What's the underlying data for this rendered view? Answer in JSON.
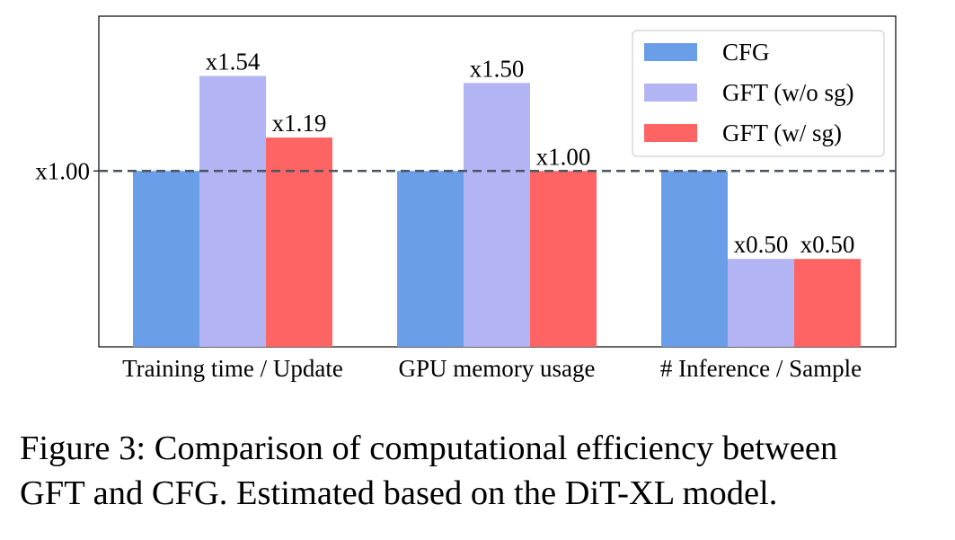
{
  "chart_data": {
    "type": "bar",
    "categories": [
      "Training time / Update",
      "GPU memory usage",
      "# Inference / Sample"
    ],
    "series": [
      {
        "name": "CFG",
        "color": "#6b9ee8",
        "values": [
          1.0,
          1.0,
          1.0
        ],
        "labels": [
          "",
          "",
          ""
        ]
      },
      {
        "name": "GFT (w/o sg)",
        "color": "#b3b4f4",
        "values": [
          1.54,
          1.5,
          0.5
        ],
        "labels": [
          "x1.54",
          "x1.50",
          "x0.50"
        ]
      },
      {
        "name": "GFT (w/ sg)",
        "color": "#ff6464",
        "values": [
          1.19,
          1.0,
          0.5
        ],
        "labels": [
          "x1.19",
          "x1.00",
          "x0.50"
        ]
      }
    ],
    "ylim": [
      0,
      1.88
    ],
    "reference_line": {
      "value": 1.0,
      "label": "x1.00",
      "style": "dashed",
      "color": "#4a5560"
    },
    "legend": {
      "position": "top-right"
    },
    "grid": false,
    "xlabel": "",
    "ylabel": ""
  },
  "caption": {
    "line1": "Figure 3: Comparison of computational efficiency between",
    "line2": "GFT and CFG. Estimated based on the DiT-XL model."
  }
}
